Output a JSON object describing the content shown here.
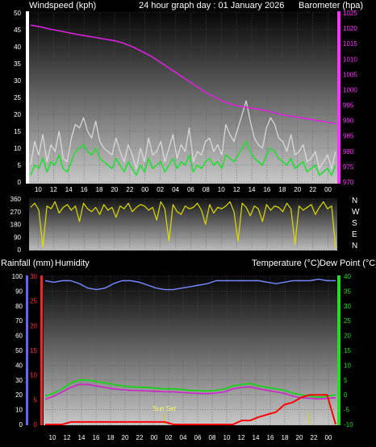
{
  "header": {
    "wind_label": "Windspeed (kph)",
    "title": "24 hour graph day : 01 January 2026",
    "baro_label": "Barometer (hpa)"
  },
  "labels": {
    "rainfall": "Rainfall (mm)",
    "humidity": "Humidity",
    "temperature": "Temperature (°C)",
    "dewpoint": "Dew Point (°C)",
    "sunset": "Sun Set"
  },
  "x_ticks": [
    "10",
    "12",
    "14",
    "16",
    "18",
    "20",
    "22",
    "00",
    "02",
    "04",
    "06",
    "08",
    "10",
    "12",
    "14",
    "16",
    "18",
    "20",
    "22",
    "00"
  ],
  "colors": {
    "wind_avg": "#22dd33",
    "wind_gust": "#dddddd",
    "barometer": "#dd22dd",
    "direction": "#dddd00",
    "humidity": "#7788ff",
    "temperature": "#22cc22",
    "dewpoint": "#cc22cc",
    "rainfall": "#ff0000",
    "axis_wind": "#000000",
    "axis_baro": "#ff33ff",
    "axis_humidity": "#6666ff",
    "axis_rain": "#ff2222",
    "axis_temp": "#22dd22",
    "sunset_marker": "#cccc00"
  },
  "chart_data": [
    {
      "type": "line",
      "id": "wind-barometer",
      "title": "24 hour graph day : 01 January 2026",
      "xlabel": "",
      "ylabel": "Windspeed (kph)",
      "y2label": "Barometer (hpa)",
      "ylim": [
        0,
        50
      ],
      "y_ticks": [
        0,
        5,
        10,
        15,
        20,
        25,
        30,
        35,
        40,
        45,
        50
      ],
      "y2lim": [
        970,
        1025
      ],
      "y2_ticks": [
        970,
        975,
        980,
        985,
        990,
        995,
        1000,
        1005,
        1010,
        1015,
        1020,
        1025
      ],
      "grid": true,
      "series": [
        {
          "key": "wind_avg",
          "values": [
            2,
            5,
            4,
            7,
            3,
            6,
            5,
            8,
            4,
            3,
            6,
            9,
            10,
            11,
            9,
            8,
            10,
            7,
            6,
            5,
            4,
            7,
            5,
            3,
            6,
            4,
            2,
            5,
            3,
            7,
            4,
            5,
            6,
            3,
            5,
            7,
            4,
            6,
            5,
            8,
            3,
            5,
            4,
            6,
            7,
            5,
            6,
            4,
            8,
            7,
            6,
            8,
            10,
            12,
            9,
            7,
            6,
            5,
            8,
            10,
            9,
            7,
            6,
            5,
            7,
            4,
            5,
            6,
            3,
            4,
            5,
            2,
            3,
            4,
            2,
            5
          ]
        },
        {
          "key": "wind_gust",
          "values": [
            5,
            12,
            8,
            14,
            6,
            11,
            9,
            15,
            7,
            6,
            13,
            17,
            16,
            19,
            15,
            13,
            18,
            12,
            10,
            9,
            8,
            13,
            9,
            6,
            11,
            8,
            4,
            10,
            6,
            13,
            8,
            9,
            12,
            6,
            10,
            14,
            7,
            11,
            9,
            16,
            6,
            9,
            8,
            12,
            13,
            9,
            11,
            8,
            17,
            14,
            12,
            16,
            20,
            24,
            18,
            13,
            11,
            10,
            16,
            19,
            17,
            13,
            12,
            9,
            14,
            8,
            9,
            11,
            6,
            7,
            9,
            4,
            6,
            8,
            4,
            9
          ]
        },
        {
          "key": "barometer",
          "values": [
            1021,
            1020.5,
            1019.8,
            1019.2,
            1018.6,
            1018,
            1017.5,
            1017,
            1016.5,
            1016,
            1015.2,
            1014,
            1012.5,
            1011,
            1009,
            1007,
            1005,
            1003,
            1001,
            999,
            997.5,
            996,
            995,
            994.5,
            994,
            993.5,
            992.8,
            992,
            991.5,
            991,
            990.5,
            990,
            989.5,
            989
          ]
        }
      ]
    },
    {
      "type": "line",
      "id": "wind-direction",
      "xlabel": "",
      "ylabel": "",
      "ylim": [
        0,
        360
      ],
      "y_ticks": [
        0,
        90,
        180,
        270,
        360
      ],
      "compass_labels": [
        "N",
        "W",
        "S",
        "E",
        "N"
      ],
      "grid": true,
      "series": [
        {
          "key": "direction",
          "values": [
            300,
            330,
            280,
            20,
            310,
            290,
            340,
            260,
            300,
            320,
            280,
            310,
            200,
            330,
            290,
            270,
            300,
            250,
            320,
            280,
            300,
            230,
            310,
            290,
            330,
            270,
            300,
            320,
            310,
            280,
            300,
            210,
            340,
            290,
            60,
            320,
            270,
            250,
            310,
            290,
            300,
            330,
            280,
            180,
            320,
            260,
            300,
            290,
            310,
            340,
            270,
            60,
            330,
            300,
            240,
            310,
            290,
            200,
            320,
            280,
            310,
            300,
            270,
            330,
            290,
            40,
            310,
            280,
            300,
            320,
            250,
            300,
            340,
            290,
            310,
            10
          ]
        }
      ]
    },
    {
      "type": "line",
      "id": "temperature-humidity-rain",
      "xlabel": "",
      "ylabel": "Rainfall (mm)",
      "y2label": "Temperature (°C)",
      "y3label": "Humidity",
      "ylim": [
        0,
        30
      ],
      "y_ticks": [
        0,
        5,
        10,
        15,
        20,
        25,
        30
      ],
      "humidity_lim": [
        0,
        100
      ],
      "humidity_ticks": [
        0,
        10,
        20,
        30,
        40,
        50,
        60,
        70,
        80,
        90,
        100
      ],
      "temp_lim": [
        -10,
        40
      ],
      "temp_ticks": [
        -10,
        -5,
        0,
        5,
        10,
        15,
        20,
        25,
        30,
        35,
        40
      ],
      "grid": true,
      "series": [
        {
          "key": "humidity",
          "values": [
            97,
            96,
            97,
            97,
            95,
            92,
            91,
            92,
            95,
            97,
            97,
            96,
            94,
            92,
            91,
            91,
            92,
            93,
            94,
            95,
            97,
            97,
            97,
            97,
            97,
            97,
            96,
            95,
            96,
            97,
            97,
            97,
            98,
            97,
            97
          ]
        },
        {
          "key": "temperature",
          "values": [
            -0.5,
            0.5,
            2,
            4,
            5,
            5,
            4.5,
            4,
            3.5,
            3,
            2.7,
            2.5,
            2.5,
            2.2,
            2,
            2,
            1.8,
            1.5,
            1.4,
            1.3,
            1.5,
            2,
            3,
            3.5,
            3.8,
            3,
            2.5,
            2,
            1.5,
            0.5,
            0,
            -0.5,
            -0.8,
            -0.5,
            0
          ]
        },
        {
          "key": "dewpoint",
          "values": [
            -1.5,
            -0.5,
            1,
            2.5,
            3.5,
            3.5,
            3,
            2.5,
            2,
            1.7,
            1.5,
            1.4,
            1.3,
            1.2,
            1,
            1,
            0.8,
            0.6,
            0.5,
            0.4,
            0.6,
            1,
            2,
            2.5,
            2.7,
            2,
            1.5,
            1,
            0.5,
            -0.5,
            -1,
            -1.2,
            -1.4,
            -1.2,
            -1
          ]
        },
        {
          "key": "rainfall",
          "values": [
            0,
            0,
            0,
            0.5,
            0.5,
            0.5,
            0.5,
            0.5,
            0.5,
            0.5,
            0.5,
            0.5,
            0.5,
            0.5,
            0.5,
            0,
            0,
            0,
            0,
            0,
            0,
            0,
            0,
            0.8,
            0.8,
            1.5,
            2,
            2.5,
            4,
            4.5,
            5.5,
            6,
            6,
            6,
            0
          ]
        }
      ],
      "annotations": [
        {
          "text": "Sun Set",
          "x_index": 7.7
        },
        {
          "text": "",
          "x_index": 17.7
        }
      ]
    }
  ]
}
